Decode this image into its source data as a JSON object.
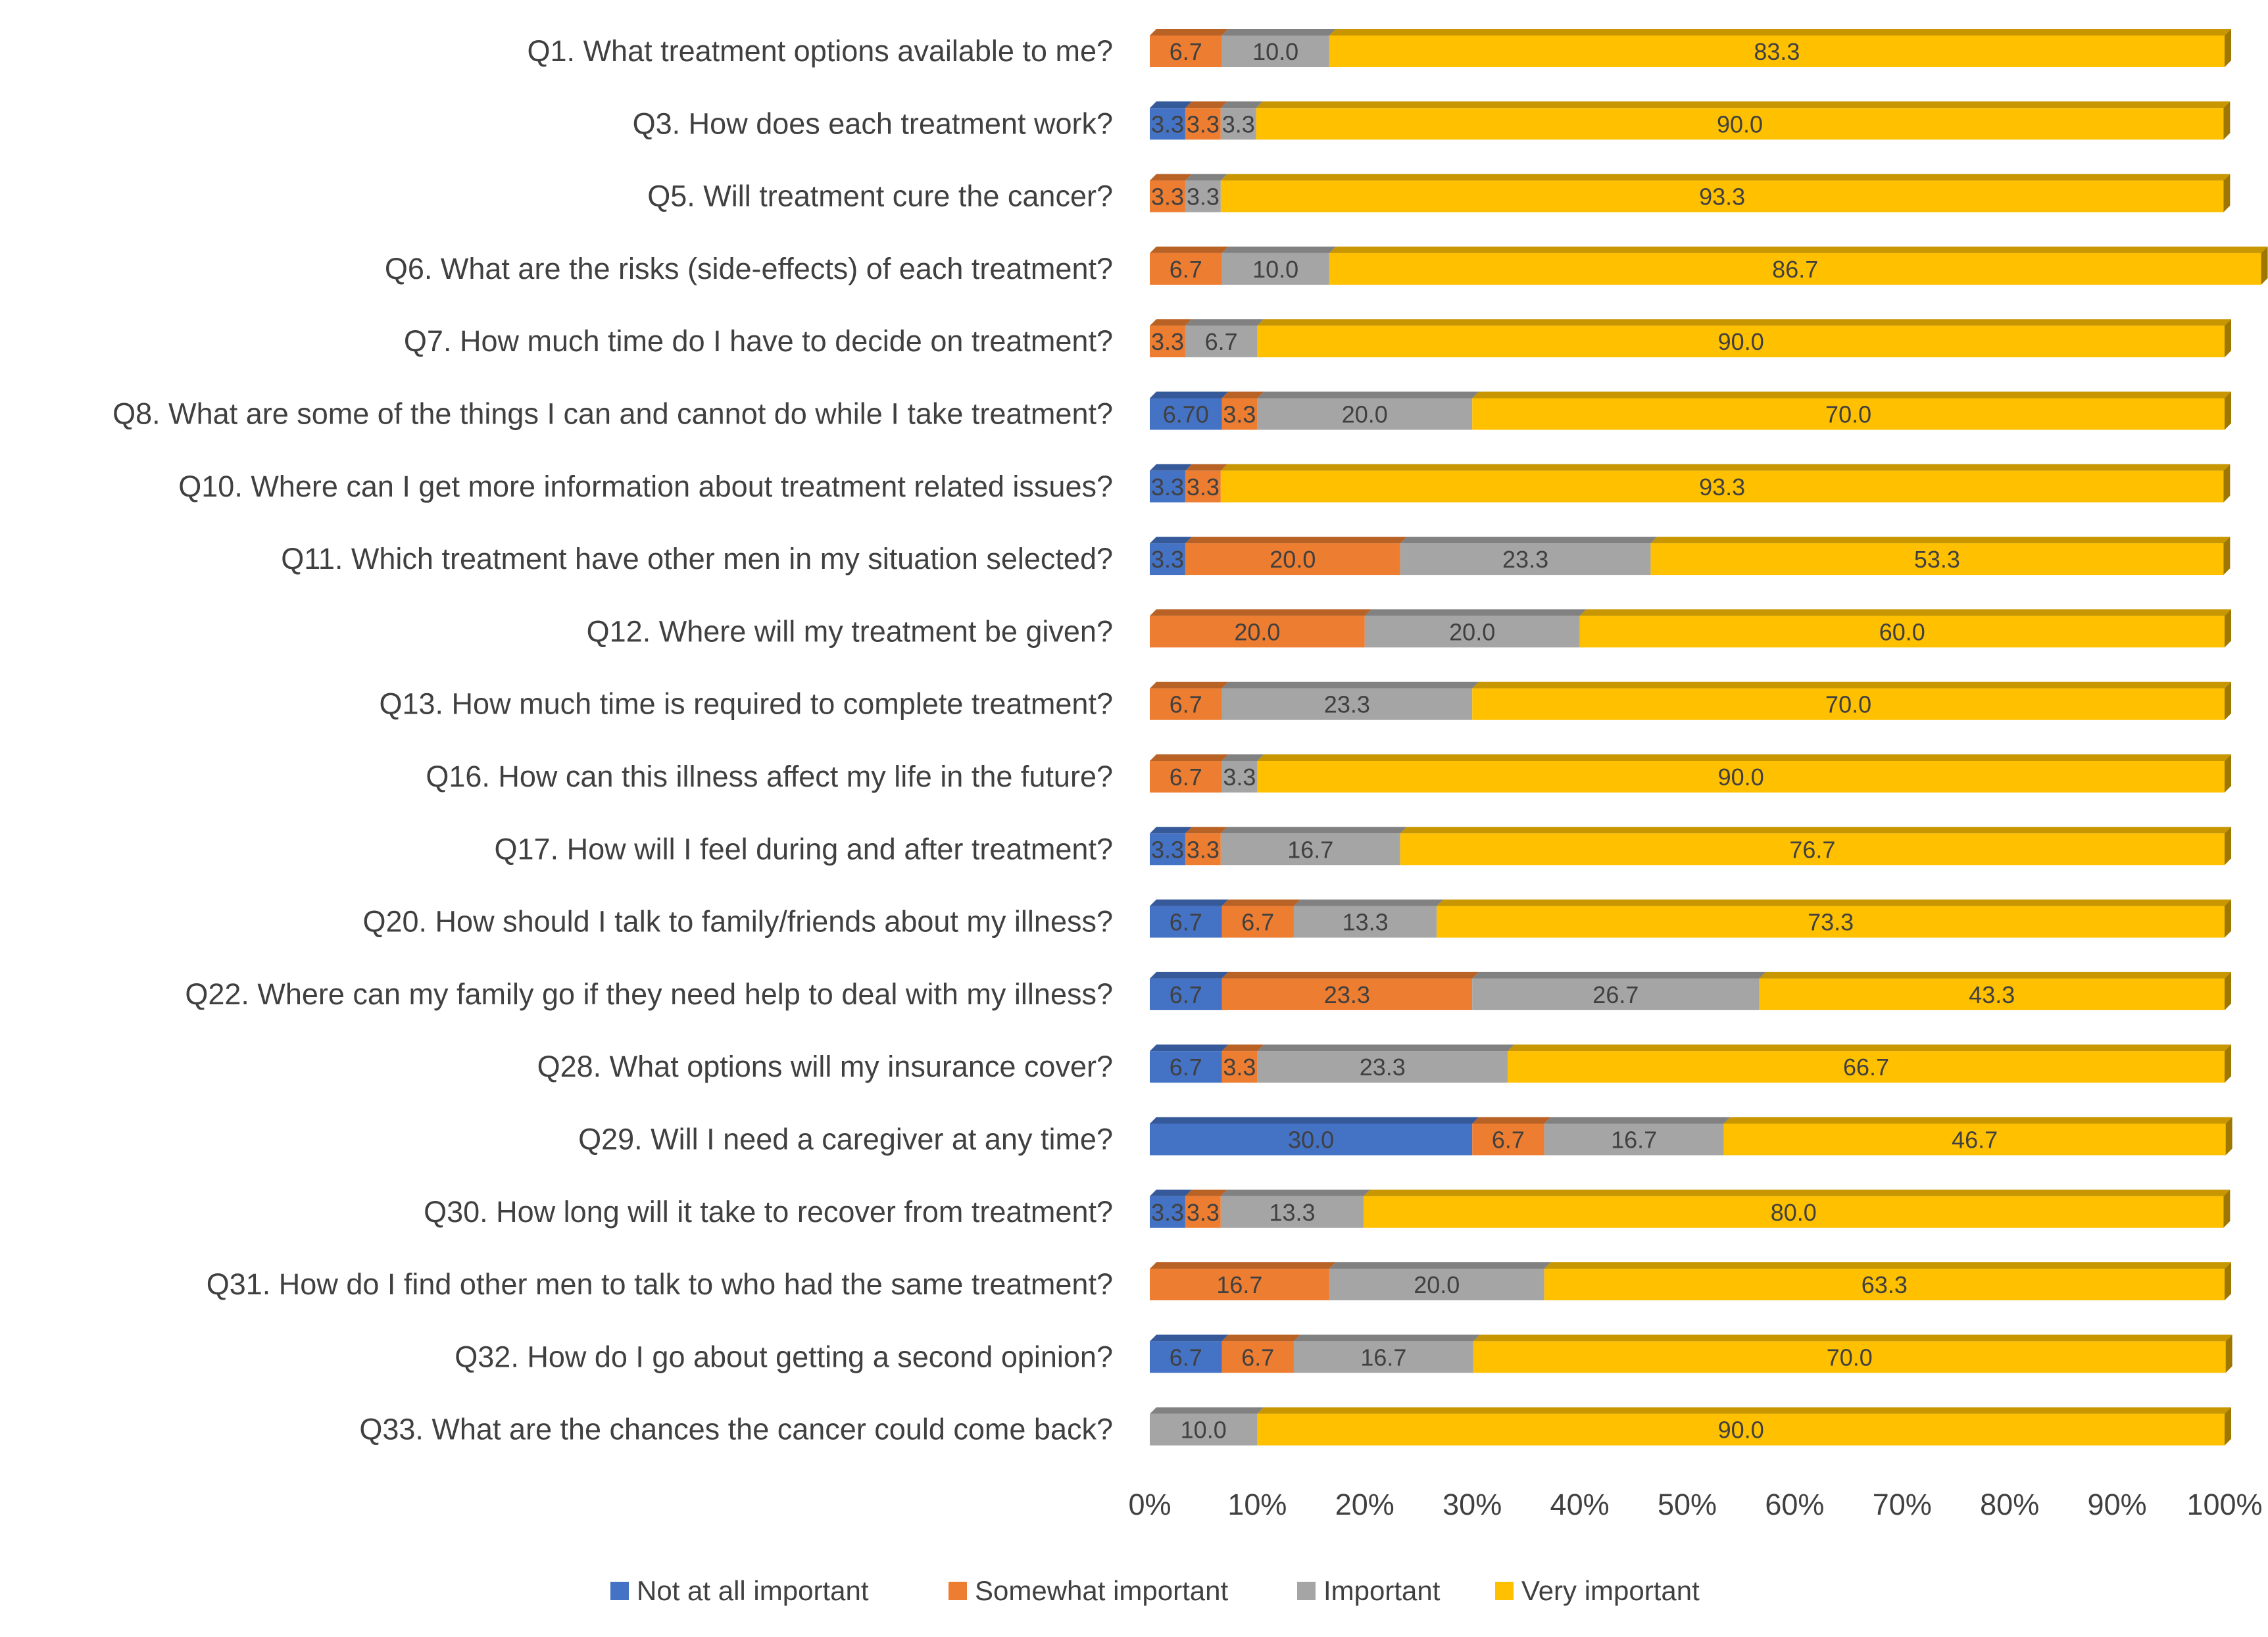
{
  "chart_data": {
    "type": "bar",
    "orientation": "horizontal",
    "stacked": "percent",
    "title": "",
    "xlabel": "",
    "ylabel": "",
    "xlim": [
      0,
      100
    ],
    "x_ticks": [
      "0%",
      "10%",
      "20%",
      "30%",
      "40%",
      "50%",
      "60%",
      "70%",
      "80%",
      "90%",
      "100%"
    ],
    "grid": false,
    "legend_position": "bottom",
    "categories": [
      "Q1. What treatment options available to me?",
      "Q3. How does each treatment work?",
      "Q5. Will treatment cure the cancer?",
      "Q6. What are the risks (side-effects) of each treatment?",
      "Q7. How much time do I have to decide on treatment?",
      "Q8. What are some of the things I can and cannot do while I take treatment?",
      "Q10. Where can I get more information about treatment related issues?",
      "Q11. Which treatment have other men in my situation selected?",
      "Q12. Where will my treatment be given?",
      "Q13. How much time is required to complete treatment?",
      "Q16. How can this illness affect my life in the future?",
      "Q17. How will I feel during and after treatment?",
      "Q20. How should I talk to family/friends about my illness?",
      "Q22. Where can my family go if they need help to deal with my illness?",
      "Q28. What options will my insurance cover?",
      "Q29. Will I need a caregiver at any time?",
      "Q30. How long will it take to recover from treatment?",
      "Q31. How do I find other men to talk to who had the same treatment?",
      "Q32. How do I go about getting a second opinion?",
      "Q33. What are the chances the cancer could come back?"
    ],
    "series": [
      {
        "name": "Not at all important",
        "color": "#4472C4",
        "values": [
          0,
          3.3,
          0,
          0,
          0,
          6.7,
          3.3,
          3.3,
          0,
          0,
          0,
          3.3,
          6.7,
          6.7,
          6.7,
          30.0,
          3.3,
          0,
          6.7,
          0
        ],
        "labels": [
          null,
          "3.3",
          null,
          null,
          null,
          "6.70",
          "3.3",
          "3.3",
          null,
          null,
          null,
          "3.3",
          "6.7",
          "6.7",
          "6.7",
          "30.0",
          "3.3",
          null,
          "6.7",
          null
        ]
      },
      {
        "name": "Somewhat important",
        "color": "#ED7D31",
        "values": [
          6.7,
          3.3,
          3.3,
          6.7,
          3.3,
          3.3,
          3.3,
          20.0,
          20.0,
          6.7,
          6.7,
          3.3,
          6.7,
          23.3,
          3.3,
          6.7,
          3.3,
          16.7,
          6.7,
          0
        ],
        "labels": [
          "6.7",
          "3.3",
          "3.3",
          "6.7",
          "3.3",
          "3.3",
          "3.3",
          "20.0",
          "20.0",
          "6.7",
          "6.7",
          "3.3",
          "6.7",
          "23.3",
          "3.3",
          "6.7",
          "3.3",
          "16.7",
          "6.7",
          null
        ]
      },
      {
        "name": "Important",
        "color": "#A5A5A5",
        "values": [
          10.0,
          3.3,
          3.3,
          10.0,
          6.7,
          20.0,
          0,
          23.3,
          20.0,
          23.3,
          3.3,
          16.7,
          13.3,
          26.7,
          23.3,
          16.7,
          13.3,
          20.0,
          16.7,
          10.0
        ],
        "labels": [
          "10.0",
          "3.3",
          "3.3",
          "10.0",
          "6.7",
          "20.0",
          null,
          "23.3",
          "20.0",
          "23.3",
          "3.3",
          "16.7",
          "13.3",
          "26.7",
          "23.3",
          "16.7",
          "13.3",
          "20.0",
          "16.7",
          "10.0"
        ]
      },
      {
        "name": "Very important",
        "color": "#FFC000",
        "values": [
          83.3,
          90.0,
          93.3,
          86.7,
          90.0,
          70.0,
          93.3,
          53.3,
          60.0,
          70.0,
          90.0,
          76.7,
          73.3,
          43.3,
          66.7,
          46.7,
          80.0,
          63.3,
          70.0,
          90.0
        ],
        "labels": [
          "83.3",
          "90.0",
          "93.3",
          "86.7",
          "90.0",
          "70.0",
          "93.3",
          "53.3",
          "60.0",
          "70.0",
          "90.0",
          "76.7",
          "73.3",
          "43.3",
          "66.7",
          "46.7",
          "80.0",
          "63.3",
          "70.0",
          "90.0"
        ]
      }
    ]
  }
}
